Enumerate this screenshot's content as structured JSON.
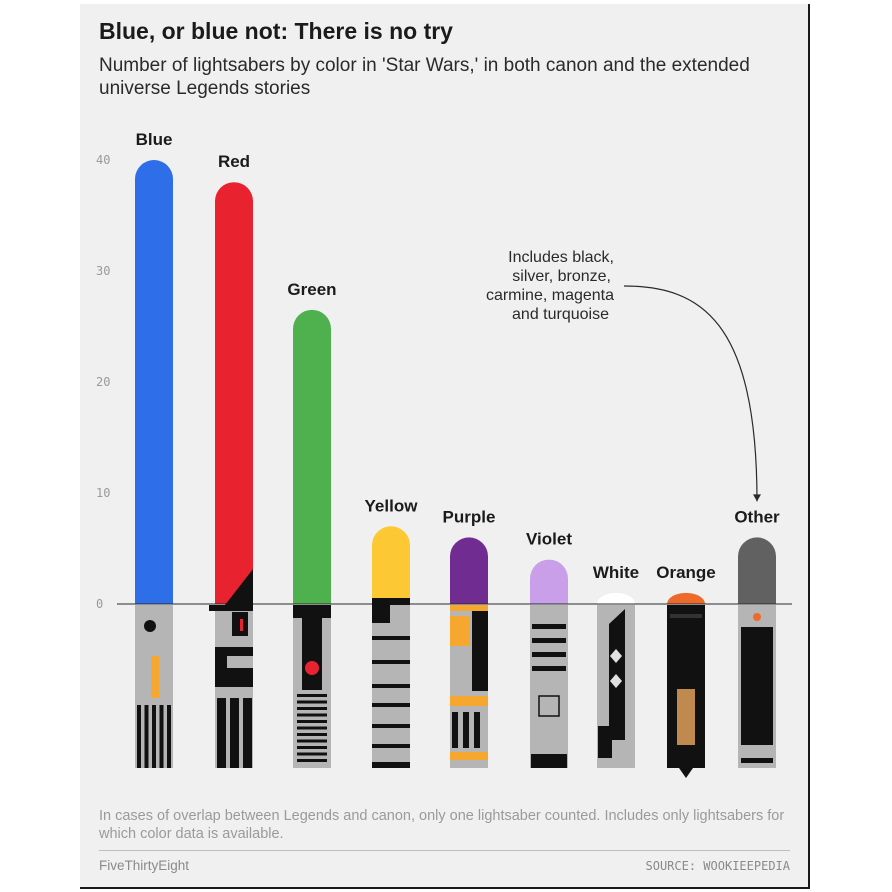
{
  "header": {
    "title": "Blue, or blue not: There is no try",
    "subtitle": "Number of lightsabers by color in 'Star Wars,' in both canon and the extended universe Legends stories"
  },
  "chart_data": {
    "type": "bar",
    "categories": [
      "Blue",
      "Red",
      "Green",
      "Yellow",
      "Purple",
      "Violet",
      "White",
      "Orange",
      "Other"
    ],
    "values": [
      40,
      38,
      26.5,
      7,
      6,
      4,
      1,
      1,
      6
    ],
    "colors": [
      "#2e6ee8",
      "#e8222e",
      "#4fb14d",
      "#fcc934",
      "#702c91",
      "#c89fe8",
      "#ffffff",
      "#ee6a2a",
      "#616161"
    ],
    "yticks": [
      0,
      10,
      20,
      30,
      40
    ],
    "ylim": [
      0,
      40
    ],
    "grid": false,
    "annotation": {
      "lines": [
        "Includes black,",
        "silver, bronze,",
        "carmine, magenta",
        "and turquoise"
      ],
      "target": "Other"
    }
  },
  "footer": {
    "note": "In cases of overlap between Legends and canon, only one lightsaber counted. Includes only lightsabers for which color data is available.",
    "brand": "FiveThirtyEight",
    "source": "SOURCE: WOOKIEEPEDIA"
  }
}
